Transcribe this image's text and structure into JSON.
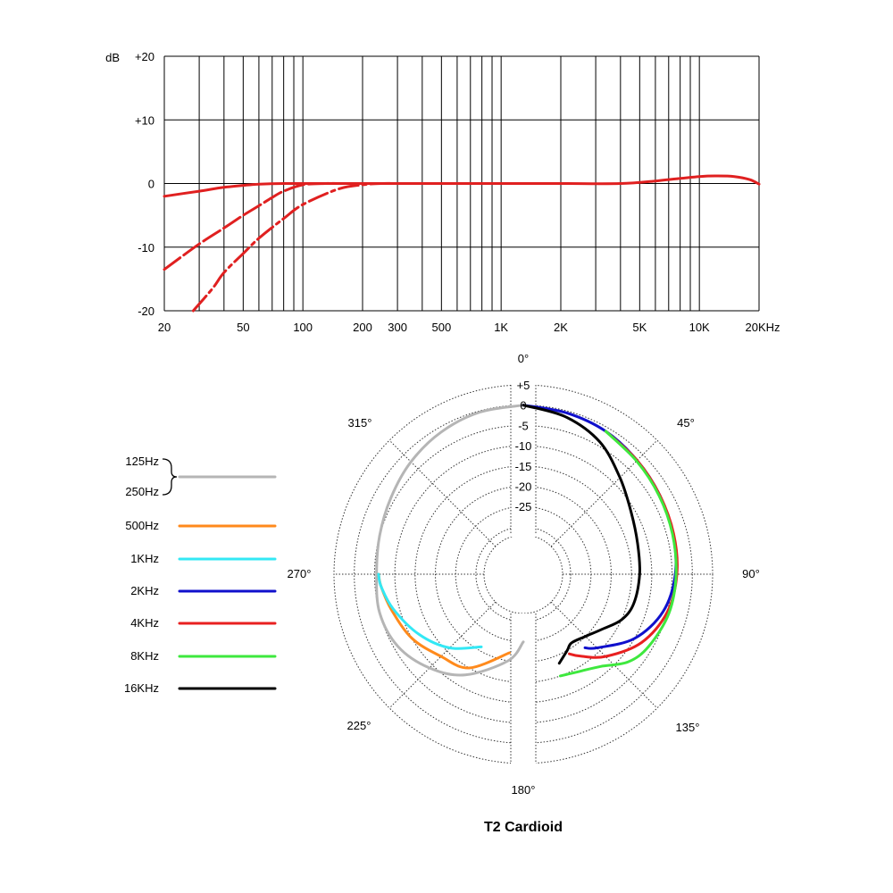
{
  "chart_data": [
    {
      "type": "line",
      "title": "",
      "xlabel": "",
      "ylabel": "dB",
      "x_scale": "log",
      "xlim": [
        20,
        20000
      ],
      "ylim": [
        -20,
        20
      ],
      "grid": true,
      "x_ticks": [
        {
          "value": 20,
          "label": "20"
        },
        {
          "value": 50,
          "label": "50"
        },
        {
          "value": 100,
          "label": "100"
        },
        {
          "value": 200,
          "label": "200"
        },
        {
          "value": 300,
          "label": "300"
        },
        {
          "value": 500,
          "label": "500"
        },
        {
          "value": 1000,
          "label": "1K"
        },
        {
          "value": 2000,
          "label": "2K"
        },
        {
          "value": 5000,
          "label": "5K"
        },
        {
          "value": 10000,
          "label": "10K"
        },
        {
          "value": 20000,
          "label": "20KHz"
        }
      ],
      "y_ticks": [
        {
          "value": 20,
          "label": "+20"
        },
        {
          "value": 10,
          "label": "+10"
        },
        {
          "value": 0,
          "label": "0"
        },
        {
          "value": -10,
          "label": "-10"
        },
        {
          "value": -20,
          "label": "-20"
        }
      ],
      "series": [
        {
          "style": "solid",
          "color": "#e02020",
          "x": [
            20,
            30,
            40,
            50,
            60,
            80,
            100,
            200,
            500,
            1000,
            2000,
            4000,
            6000,
            8000,
            10000,
            12000,
            15000,
            18000,
            20000
          ],
          "y": [
            -2.0,
            -1.2,
            -0.6,
            -0.3,
            -0.1,
            0,
            0,
            0,
            0,
            0,
            0,
            0,
            0.4,
            0.8,
            1.1,
            1.2,
            1.1,
            0.6,
            -0.1
          ]
        },
        {
          "style": "dashed",
          "color": "#e02020",
          "x": [
            20,
            30,
            40,
            50,
            60,
            70,
            80,
            100,
            130,
            150
          ],
          "y": [
            -13.5,
            -9.5,
            -7.0,
            -5.0,
            -3.5,
            -2.2,
            -1.2,
            -0.2,
            0,
            0
          ]
        },
        {
          "style": "dashdot",
          "color": "#e02020",
          "x": [
            28,
            35,
            40,
            50,
            60,
            80,
            100,
            150,
            200,
            250,
            300
          ],
          "y": [
            -20,
            -16.5,
            -14.0,
            -11.0,
            -8.6,
            -5.5,
            -3.3,
            -0.9,
            -0.2,
            0,
            0
          ]
        }
      ]
    },
    {
      "type": "polar",
      "title": "T2 Cardioid",
      "radial_unit": "dB",
      "radial_ticks": [
        "+5",
        "0",
        "-5",
        "-10",
        "-15",
        "-20",
        "-25"
      ],
      "rlim": [
        -32,
        5
      ],
      "angle_labels": [
        "0°",
        "45°",
        "90°",
        "135°",
        "180°",
        "225°",
        "270°",
        "315°"
      ],
      "series": [
        {
          "name": "125Hz / 250Hz",
          "color": "#b5b5b5",
          "angle": [
            -180,
            -170,
            -150,
            -135,
            -120,
            -105,
            -90,
            -75,
            -60,
            -45,
            -30,
            -15,
            0
          ],
          "db": [
            -25,
            -20,
            -13,
            -9,
            -6,
            -5,
            -5.5,
            -5,
            -4,
            -2.5,
            -1.2,
            -0.3,
            0
          ]
        },
        {
          "name": "500Hz",
          "color": "#ff8a1c",
          "angle": [
            -170,
            -150,
            -135,
            -120,
            -105,
            -95,
            -90
          ],
          "db": [
            -22,
            -15,
            -13,
            -10,
            -8,
            -6.5,
            -6
          ]
        },
        {
          "name": "1KHz",
          "color": "#33e8f5",
          "angle": [
            -150,
            -135,
            -120,
            -105,
            -95,
            -90
          ],
          "db": [
            -21,
            -16,
            -12,
            -8.5,
            -6.5,
            -6
          ]
        },
        {
          "name": "2KHz",
          "color": "#1010cc",
          "angle": [
            0,
            15,
            30,
            45,
            60,
            75,
            90,
            105,
            120,
            135,
            140
          ],
          "db": [
            0,
            -0.5,
            -1,
            -2,
            -2.8,
            -3.5,
            -4.2,
            -6,
            -10,
            -16,
            -18
          ]
        },
        {
          "name": "4KHz",
          "color": "#e82020",
          "angle": [
            30,
            45,
            60,
            75,
            90,
            105,
            120,
            135,
            145,
            150
          ],
          "db": [
            -1,
            -2,
            -2.8,
            -3.3,
            -3.8,
            -5,
            -8,
            -13,
            -17,
            -19
          ]
        },
        {
          "name": "8KHz",
          "color": "#3ee83e",
          "angle": [
            30,
            45,
            60,
            75,
            90,
            105,
            120,
            130,
            140,
            150,
            160
          ],
          "db": [
            -1,
            -2.2,
            -3,
            -3.6,
            -4,
            -4.5,
            -6,
            -8,
            -12,
            -14,
            -15
          ]
        },
        {
          "name": "16KHz",
          "color": "#000000",
          "angle": [
            0,
            15,
            30,
            45,
            60,
            75,
            90,
            105,
            115,
            125,
            135,
            145,
            150,
            158
          ],
          "db": [
            0,
            -1.5,
            -4,
            -8,
            -11,
            -12.5,
            -13,
            -13.5,
            -15,
            -18,
            -20,
            -21,
            -20,
            -18
          ]
        }
      ]
    }
  ]
}
